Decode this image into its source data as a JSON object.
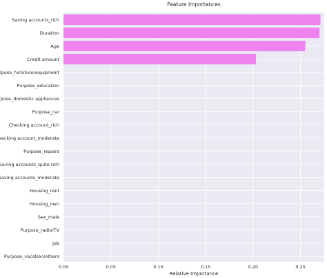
{
  "chart_data": {
    "type": "bar",
    "orientation": "horizontal",
    "title": "Feature Importances",
    "xlabel": "Relative Importance",
    "ylabel": "",
    "xlim": [
      0.0,
      0.275
    ],
    "xticks": [
      "0.00",
      "0.05",
      "0.10",
      "0.15",
      "0.20",
      "0.25"
    ],
    "grid": true,
    "colors": {
      "bar": "#ee82ee",
      "background": "#eaeaf2",
      "grid": "#ffffff"
    },
    "categories": [
      "Saving accounts_rich",
      "Duration",
      "Age",
      "Credit amount",
      "Purpose_furniture/equipment",
      "Purpose_education",
      "Purpose_domestic appliances",
      "Purpose_car",
      "Checking account_rich",
      "Checking account_moderate",
      "Purpose_repairs",
      "Saving accounts_quite rich",
      "Saving accounts_moderate",
      "Housing_rent",
      "Housing_own",
      "Sex_male",
      "Purpose_radio/TV",
      "Job",
      "Purpose_vacation/others"
    ],
    "values": [
      0.271,
      0.27,
      0.255,
      0.203,
      0,
      0,
      0,
      0,
      0,
      0,
      0,
      0,
      0,
      0,
      0,
      0,
      0,
      0,
      0
    ]
  }
}
